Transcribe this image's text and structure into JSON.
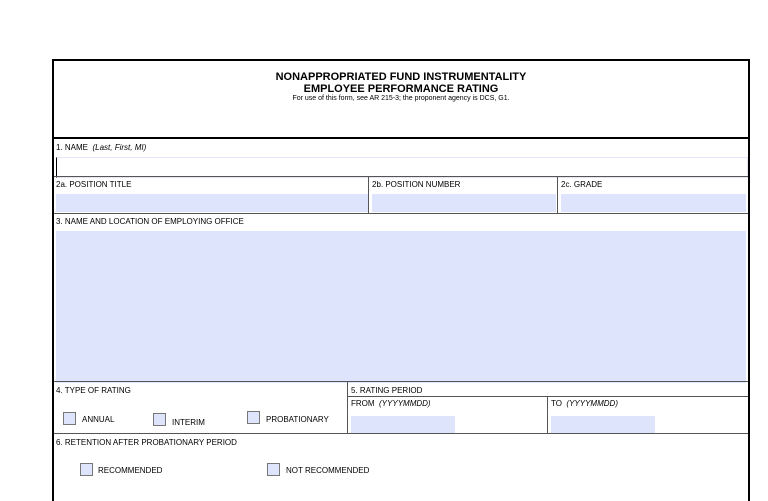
{
  "header": {
    "title_line1": "NONAPPROPRIATED FUND INSTRUMENTALITY",
    "title_line2": "EMPLOYEE PERFORMANCE RATING",
    "subtitle": "For use of this form, see AR 215-3; the proponent agency is DCS, G1."
  },
  "name": {
    "label": "1. NAME",
    "hint": "(Last, First, MI)",
    "value": ""
  },
  "position_title": {
    "label": "2a. POSITION TITLE",
    "value": ""
  },
  "position_number": {
    "label": "2b. POSITION NUMBER",
    "value": ""
  },
  "grade": {
    "label": "2c. GRADE",
    "value": ""
  },
  "office": {
    "label": "3. NAME AND LOCATION OF EMPLOYING OFFICE",
    "value": ""
  },
  "type_of_rating": {
    "label": "4. TYPE OF RATING",
    "options": [
      "ANNUAL",
      "INTERIM",
      "PROBATIONARY"
    ]
  },
  "rating_period": {
    "label": "5. RATING PERIOD",
    "from_label": "FROM",
    "from_hint": "(YYYYMMDD)",
    "to_label": "TO",
    "to_hint": "(YYYYMMDD)"
  },
  "retention": {
    "label": "6. RETENTION AFTER PROBATIONARY PERIOD",
    "options": [
      "RECOMMENDED",
      "NOT RECOMMENDED"
    ]
  },
  "colors": {
    "field": "#dde4fb"
  }
}
